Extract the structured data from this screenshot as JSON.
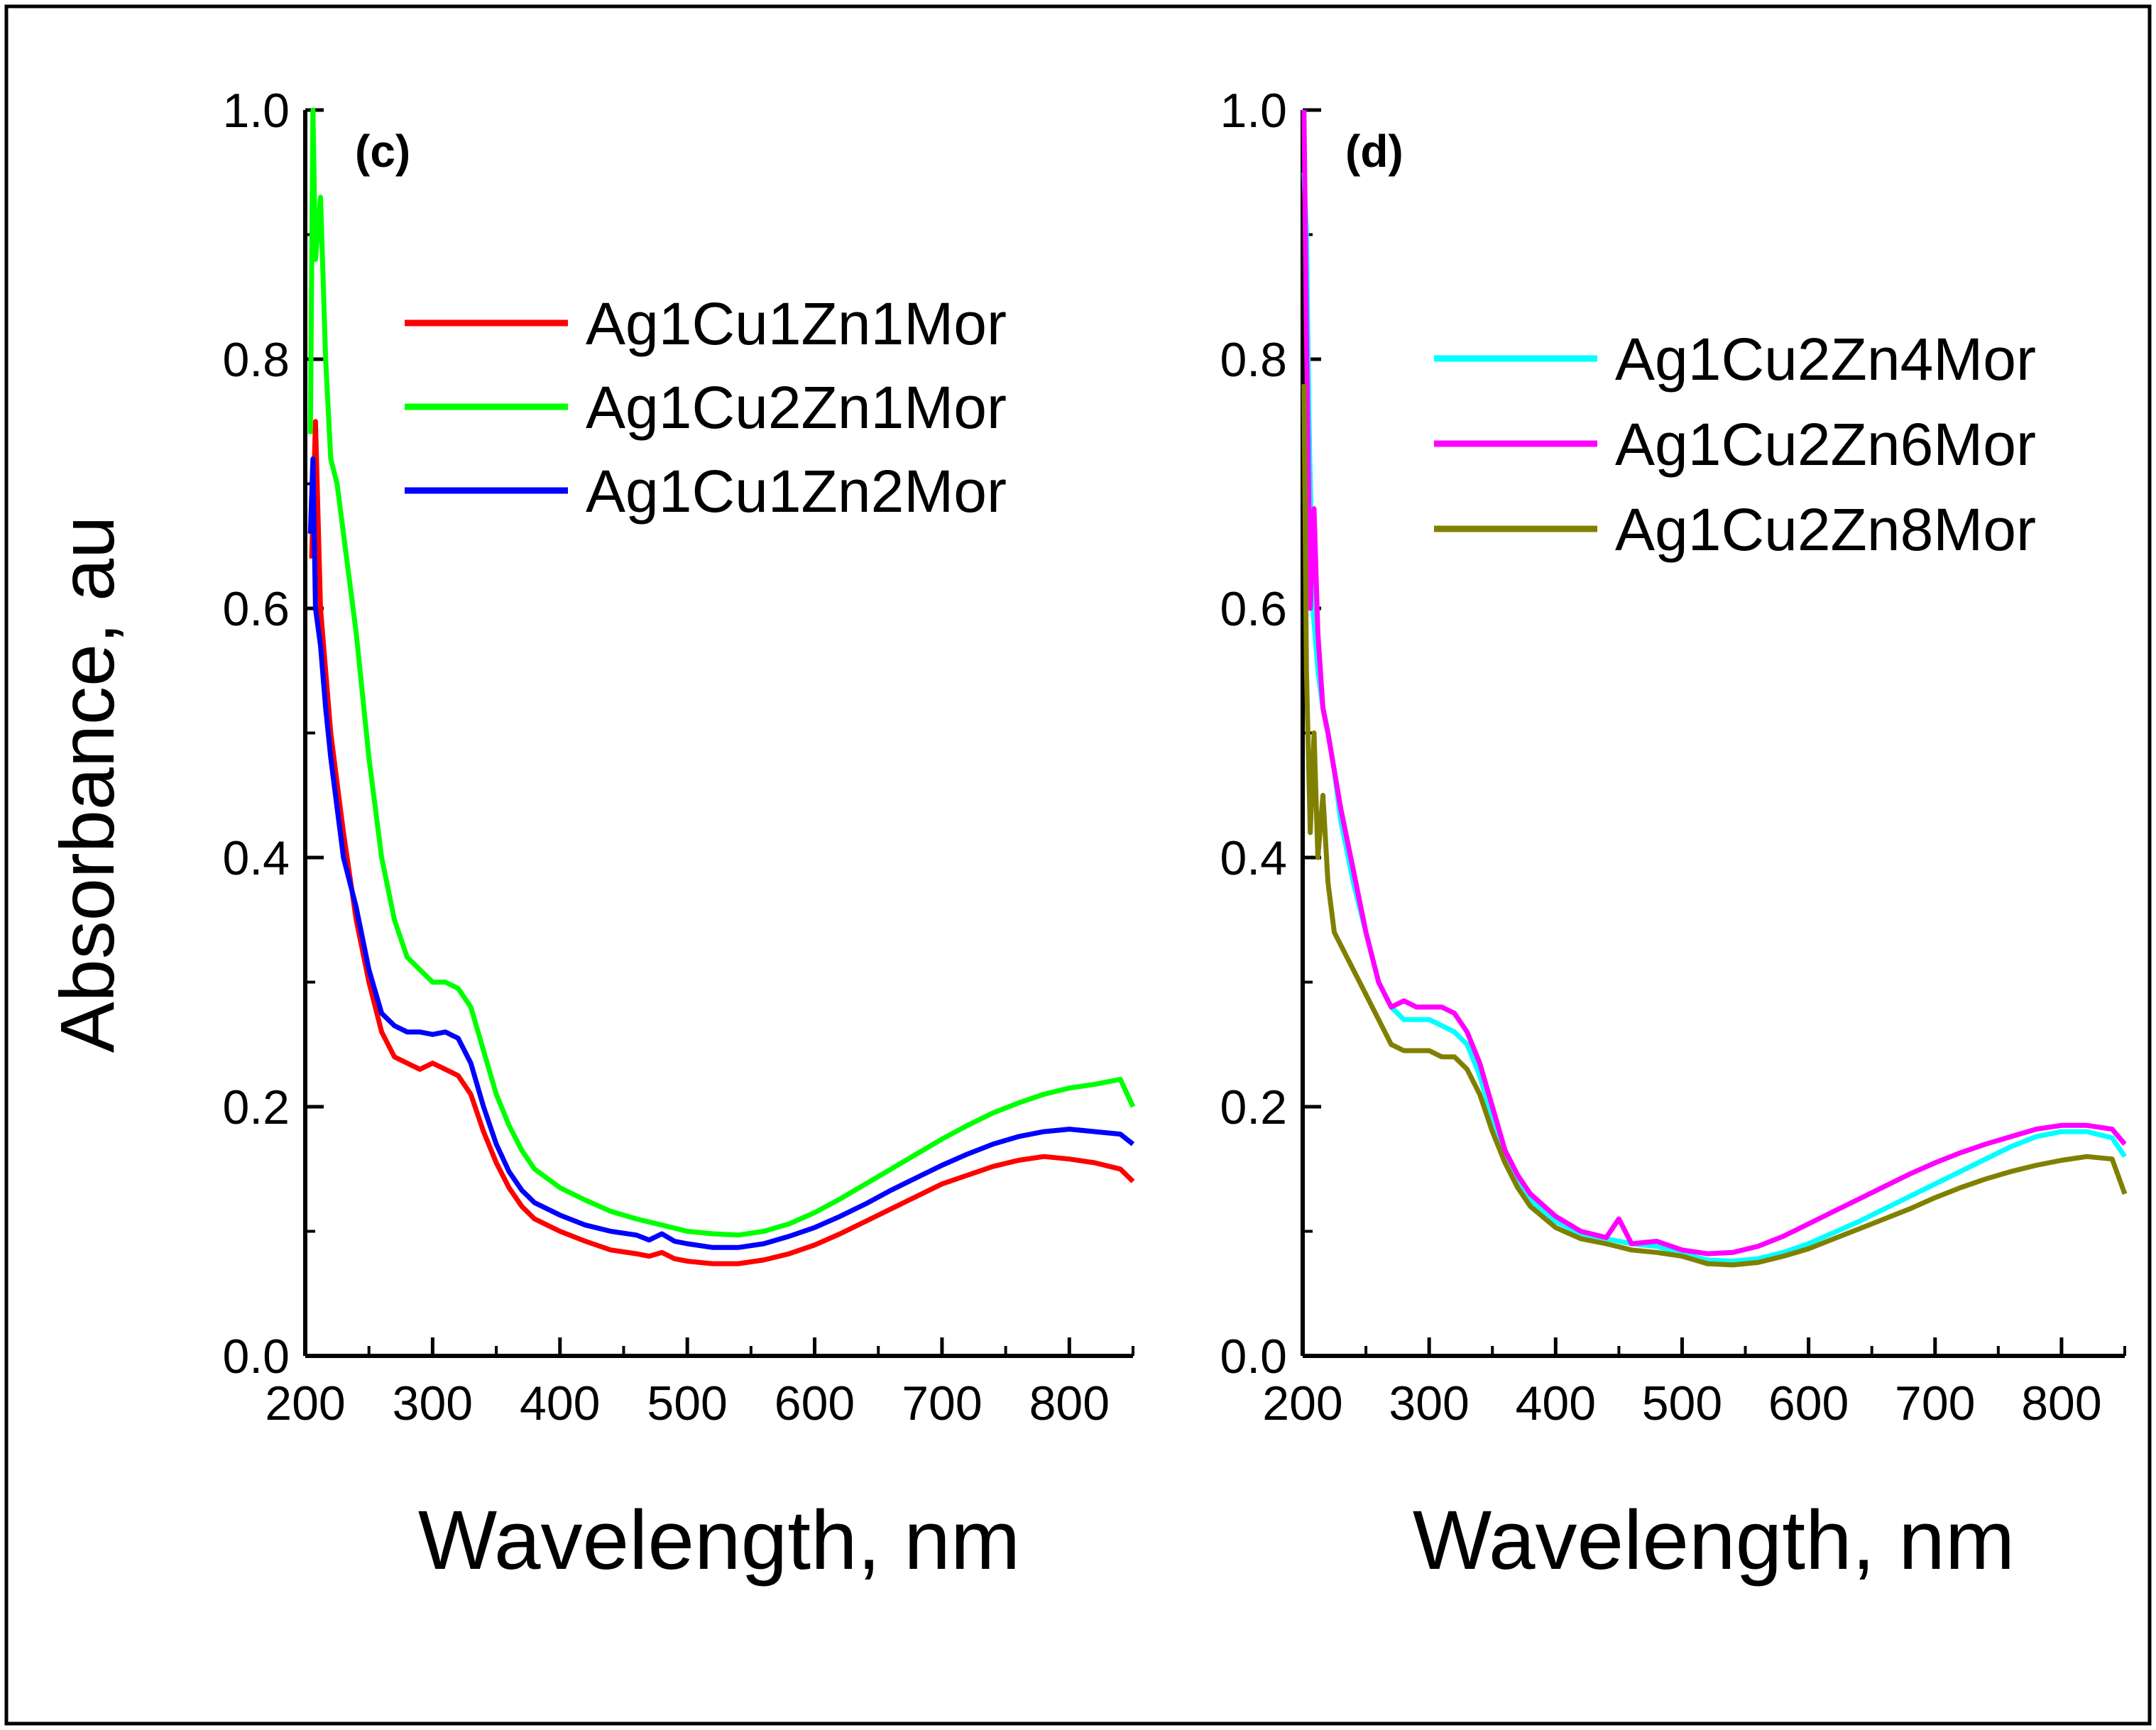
{
  "figure": {
    "border": true,
    "y_axis_title": "Absorbance, au"
  },
  "chart_data": [
    {
      "type": "line",
      "panel_label": "(c)",
      "xlabel": "Wavelength, nm",
      "ylabel": "Absorbance, au",
      "xlim": [
        200,
        850
      ],
      "ylim": [
        0.0,
        1.0
      ],
      "xticks": [
        200,
        300,
        400,
        500,
        600,
        700,
        800
      ],
      "yticks": [
        0.0,
        0.2,
        0.4,
        0.6,
        0.8,
        1.0
      ],
      "xtick_labels": [
        "200",
        "300",
        "400",
        "500",
        "600",
        "700",
        "800"
      ],
      "ytick_labels": [
        "0.0",
        "0.2",
        "0.4",
        "0.6",
        "0.8",
        "1.0"
      ],
      "legend_position": "top-right",
      "series": [
        {
          "name": "Ag1Cu1Zn1Mor",
          "color": "#ff0000",
          "x": [
            205,
            208,
            212,
            216,
            220,
            225,
            230,
            240,
            250,
            260,
            270,
            280,
            290,
            300,
            310,
            320,
            330,
            340,
            350,
            360,
            370,
            380,
            400,
            420,
            440,
            460,
            470,
            480,
            490,
            500,
            520,
            540,
            560,
            580,
            600,
            620,
            640,
            660,
            680,
            700,
            720,
            740,
            760,
            780,
            800,
            820,
            840,
            850
          ],
          "y": [
            0.64,
            0.75,
            0.6,
            0.55,
            0.5,
            0.46,
            0.42,
            0.35,
            0.3,
            0.26,
            0.24,
            0.235,
            0.23,
            0.235,
            0.23,
            0.225,
            0.21,
            0.18,
            0.155,
            0.135,
            0.12,
            0.11,
            0.1,
            0.092,
            0.085,
            0.082,
            0.08,
            0.083,
            0.078,
            0.076,
            0.074,
            0.074,
            0.077,
            0.082,
            0.089,
            0.098,
            0.108,
            0.118,
            0.128,
            0.138,
            0.145,
            0.152,
            0.157,
            0.16,
            0.158,
            0.155,
            0.15,
            0.14
          ]
        },
        {
          "name": "Ag1Cu2Zn1Mor",
          "color": "#00ff00",
          "x": [
            204,
            206,
            208,
            212,
            216,
            220,
            225,
            230,
            240,
            250,
            260,
            270,
            280,
            290,
            300,
            310,
            320,
            330,
            340,
            350,
            360,
            370,
            380,
            400,
            420,
            440,
            460,
            480,
            500,
            520,
            540,
            560,
            580,
            600,
            620,
            640,
            660,
            680,
            700,
            720,
            740,
            760,
            780,
            800,
            820,
            840,
            850
          ],
          "y": [
            0.74,
            1.0,
            0.88,
            0.93,
            0.8,
            0.72,
            0.7,
            0.66,
            0.58,
            0.48,
            0.4,
            0.35,
            0.32,
            0.31,
            0.3,
            0.3,
            0.295,
            0.28,
            0.245,
            0.21,
            0.185,
            0.165,
            0.15,
            0.135,
            0.125,
            0.116,
            0.11,
            0.105,
            0.1,
            0.098,
            0.097,
            0.1,
            0.106,
            0.115,
            0.126,
            0.138,
            0.15,
            0.162,
            0.174,
            0.185,
            0.195,
            0.203,
            0.21,
            0.215,
            0.218,
            0.222,
            0.2
          ]
        },
        {
          "name": "Ag1Cu1Zn2Mor",
          "color": "#0000ff",
          "x": [
            204,
            206,
            208,
            212,
            216,
            220,
            225,
            230,
            240,
            250,
            260,
            270,
            280,
            290,
            300,
            310,
            320,
            330,
            340,
            350,
            360,
            370,
            380,
            400,
            420,
            440,
            460,
            470,
            480,
            490,
            500,
            520,
            540,
            560,
            580,
            600,
            620,
            640,
            660,
            680,
            700,
            720,
            740,
            760,
            780,
            800,
            820,
            840,
            850
          ],
          "y": [
            0.66,
            0.72,
            0.6,
            0.57,
            0.52,
            0.48,
            0.44,
            0.4,
            0.36,
            0.31,
            0.275,
            0.265,
            0.26,
            0.26,
            0.258,
            0.26,
            0.255,
            0.235,
            0.2,
            0.17,
            0.148,
            0.133,
            0.123,
            0.113,
            0.105,
            0.1,
            0.097,
            0.093,
            0.098,
            0.092,
            0.09,
            0.087,
            0.087,
            0.09,
            0.096,
            0.103,
            0.112,
            0.122,
            0.133,
            0.143,
            0.153,
            0.162,
            0.17,
            0.176,
            0.18,
            0.182,
            0.18,
            0.178,
            0.17
          ]
        }
      ]
    },
    {
      "type": "line",
      "panel_label": "(d)",
      "xlabel": "Wavelength, nm",
      "ylabel": "",
      "xlim": [
        200,
        850
      ],
      "ylim": [
        0.0,
        1.0
      ],
      "xticks": [
        200,
        300,
        400,
        500,
        600,
        700,
        800
      ],
      "yticks": [
        0.0,
        0.2,
        0.4,
        0.6,
        0.8,
        1.0
      ],
      "xtick_labels": [
        "200",
        "300",
        "400",
        "500",
        "600",
        "700",
        "800"
      ],
      "ytick_labels": [
        "0.0",
        "0.2",
        "0.4",
        "0.6",
        "0.8",
        "1.0"
      ],
      "legend_position": "top-right",
      "series": [
        {
          "name": "Ag1Cu2Zn4Mor",
          "color": "#00ffff",
          "x": [
            201,
            203,
            205,
            208,
            212,
            216,
            220,
            225,
            230,
            240,
            250,
            260,
            270,
            280,
            290,
            300,
            310,
            320,
            330,
            340,
            350,
            360,
            370,
            380,
            400,
            420,
            440,
            460,
            480,
            500,
            520,
            540,
            560,
            580,
            600,
            620,
            640,
            660,
            680,
            700,
            720,
            740,
            760,
            780,
            800,
            820,
            840,
            850
          ],
          "y": [
            0.95,
            0.9,
            0.75,
            0.6,
            0.55,
            0.52,
            0.5,
            0.47,
            0.43,
            0.38,
            0.34,
            0.3,
            0.28,
            0.27,
            0.27,
            0.27,
            0.265,
            0.26,
            0.25,
            0.225,
            0.19,
            0.16,
            0.14,
            0.125,
            0.108,
            0.098,
            0.094,
            0.09,
            0.088,
            0.082,
            0.077,
            0.076,
            0.078,
            0.083,
            0.09,
            0.099,
            0.108,
            0.118,
            0.128,
            0.138,
            0.148,
            0.158,
            0.168,
            0.176,
            0.18,
            0.18,
            0.175,
            0.16
          ]
        },
        {
          "name": "Ag1Cu2Zn6Mor",
          "color": "#ff00ff",
          "x": [
            201,
            203,
            206,
            209,
            212,
            216,
            220,
            225,
            230,
            240,
            250,
            260,
            270,
            280,
            290,
            300,
            310,
            320,
            330,
            340,
            350,
            360,
            370,
            380,
            400,
            420,
            440,
            450,
            460,
            480,
            500,
            520,
            540,
            560,
            580,
            600,
            620,
            640,
            660,
            680,
            700,
            720,
            740,
            760,
            780,
            800,
            820,
            840,
            850
          ],
          "y": [
            1.0,
            0.82,
            0.6,
            0.68,
            0.58,
            0.52,
            0.5,
            0.47,
            0.44,
            0.39,
            0.34,
            0.3,
            0.28,
            0.285,
            0.28,
            0.28,
            0.28,
            0.275,
            0.26,
            0.235,
            0.2,
            0.165,
            0.145,
            0.13,
            0.112,
            0.1,
            0.095,
            0.11,
            0.09,
            0.092,
            0.085,
            0.082,
            0.083,
            0.088,
            0.096,
            0.106,
            0.116,
            0.126,
            0.136,
            0.146,
            0.155,
            0.163,
            0.17,
            0.176,
            0.182,
            0.185,
            0.185,
            0.182,
            0.17
          ]
        },
        {
          "name": "Ag1Cu2Zn8Mor",
          "color": "#808000",
          "x": [
            201,
            203,
            206,
            209,
            212,
            216,
            220,
            225,
            230,
            240,
            250,
            260,
            270,
            280,
            290,
            300,
            310,
            320,
            330,
            340,
            350,
            360,
            370,
            380,
            400,
            420,
            440,
            460,
            480,
            500,
            520,
            540,
            560,
            580,
            600,
            620,
            640,
            660,
            680,
            700,
            720,
            740,
            760,
            780,
            800,
            820,
            840,
            850
          ],
          "y": [
            0.78,
            0.55,
            0.42,
            0.5,
            0.4,
            0.45,
            0.38,
            0.34,
            0.33,
            0.31,
            0.29,
            0.27,
            0.25,
            0.245,
            0.245,
            0.245,
            0.24,
            0.24,
            0.23,
            0.21,
            0.18,
            0.155,
            0.135,
            0.12,
            0.103,
            0.094,
            0.09,
            0.085,
            0.083,
            0.08,
            0.074,
            0.073,
            0.075,
            0.08,
            0.086,
            0.094,
            0.102,
            0.11,
            0.118,
            0.127,
            0.135,
            0.142,
            0.148,
            0.153,
            0.157,
            0.16,
            0.158,
            0.13
          ]
        }
      ]
    }
  ]
}
